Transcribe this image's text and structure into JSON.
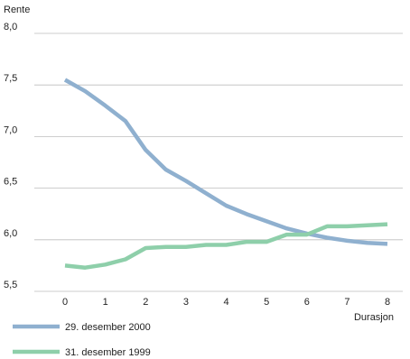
{
  "chart_data": {
    "type": "line",
    "ylabel": "Rente",
    "xlabel": "Durasjon",
    "xlim": [
      0,
      8
    ],
    "ylim": [
      5.5,
      8.0
    ],
    "x_ticks": [
      "0",
      "1",
      "2",
      "3",
      "4",
      "5",
      "6",
      "7",
      "8"
    ],
    "y_ticks": [
      "8,0",
      "7,5",
      "7,0",
      "6,5",
      "6,0",
      "5,5"
    ],
    "y_tick_values": [
      8.0,
      7.5,
      7.0,
      6.5,
      6.0,
      5.5
    ],
    "grid": true,
    "legend_position": "bottom-left",
    "series": [
      {
        "name": "29. desember 2000",
        "color": "#8fb0cf",
        "x": [
          0,
          0.5,
          1,
          1.5,
          2,
          2.5,
          3,
          3.5,
          4,
          4.5,
          5,
          5.5,
          6,
          6.5,
          7,
          7.5,
          8
        ],
        "values": [
          7.55,
          7.44,
          7.3,
          7.15,
          6.87,
          6.68,
          6.57,
          6.45,
          6.33,
          6.25,
          6.18,
          6.11,
          6.06,
          6.02,
          5.99,
          5.97,
          5.96
        ]
      },
      {
        "name": "31. desember 1999",
        "color": "#8ecfaa",
        "x": [
          0,
          0.5,
          1,
          1.5,
          2,
          2.5,
          3,
          3.5,
          4,
          4.5,
          5,
          5.5,
          6,
          6.5,
          7,
          7.5,
          8
        ],
        "values": [
          5.75,
          5.73,
          5.76,
          5.81,
          5.92,
          5.93,
          5.93,
          5.95,
          5.95,
          5.98,
          5.98,
          6.05,
          6.05,
          6.13,
          6.13,
          6.14,
          6.15
        ]
      }
    ]
  }
}
